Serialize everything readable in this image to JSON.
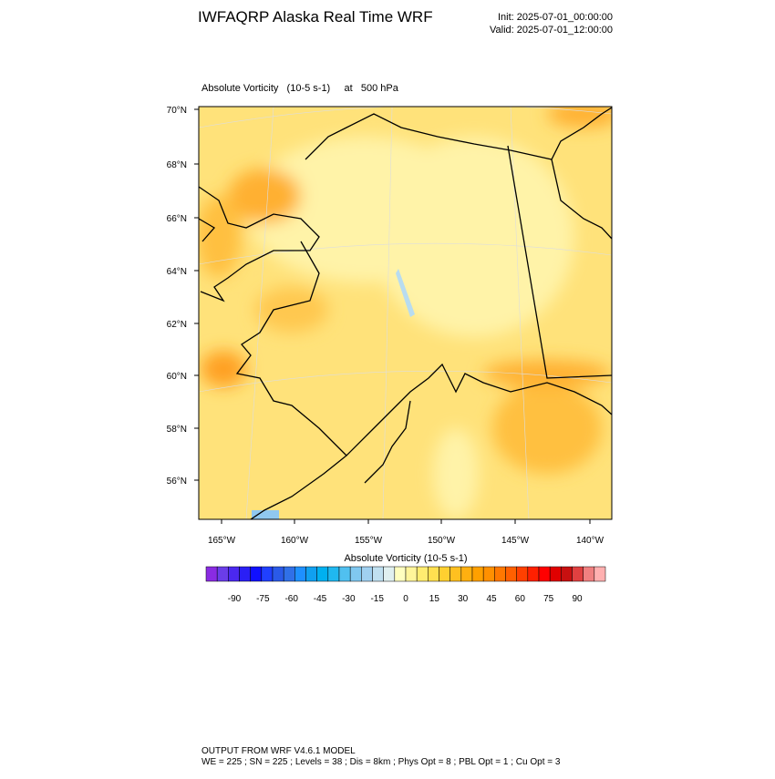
{
  "header": {
    "title": "IWFAQRP Alaska Real Time WRF",
    "init": "Init: 2025-07-01_00:00:00",
    "valid": "Valid: 2025-07-01_12:00:00"
  },
  "map": {
    "subtitle": "Absolute Vorticity   (10-5 s-1)     at   500 hPa",
    "lat_labels": [
      "70°N",
      "68°N",
      "66°N",
      "64°N",
      "62°N",
      "60°N",
      "58°N",
      "56°N"
    ],
    "lon_labels": [
      "165°W",
      "160°W",
      "155°W",
      "150°W",
      "145°W",
      "140°W"
    ]
  },
  "colorbar": {
    "title": "Absolute Vorticity  (10-5 s-1)",
    "labels": [
      "-90",
      "-75",
      "-60",
      "-45",
      "-30",
      "-15",
      "0",
      "15",
      "30",
      "45",
      "60",
      "75",
      "90"
    ],
    "colors": [
      "#8a2be2",
      "#6a3de8",
      "#4b28f0",
      "#2a1ff5",
      "#1010ff",
      "#2040ff",
      "#2a5ae8",
      "#3070e8",
      "#1e90ff",
      "#10a0f0",
      "#00b0f0",
      "#20b8f0",
      "#50c0f0",
      "#80c8f0",
      "#a0d0f0",
      "#c0e0f0",
      "#e0f0f0",
      "#ffffc0",
      "#fff59a",
      "#ffec70",
      "#ffe050",
      "#ffd030",
      "#ffc020",
      "#ffb010",
      "#ffa000",
      "#ff9000",
      "#ff7800",
      "#ff6000",
      "#ff4000",
      "#ff2000",
      "#ff0000",
      "#e00000",
      "#c81010",
      "#e04040",
      "#f08080",
      "#ffb0b0"
    ]
  },
  "footer": {
    "line1": "OUTPUT FROM WRF V4.6.1 MODEL",
    "line2": "WE = 225 ; SN = 225 ; Levels = 38 ; Dis = 8km ; Phys Opt = 8 ; PBL Opt = 1 ; Cu Opt = 3"
  }
}
